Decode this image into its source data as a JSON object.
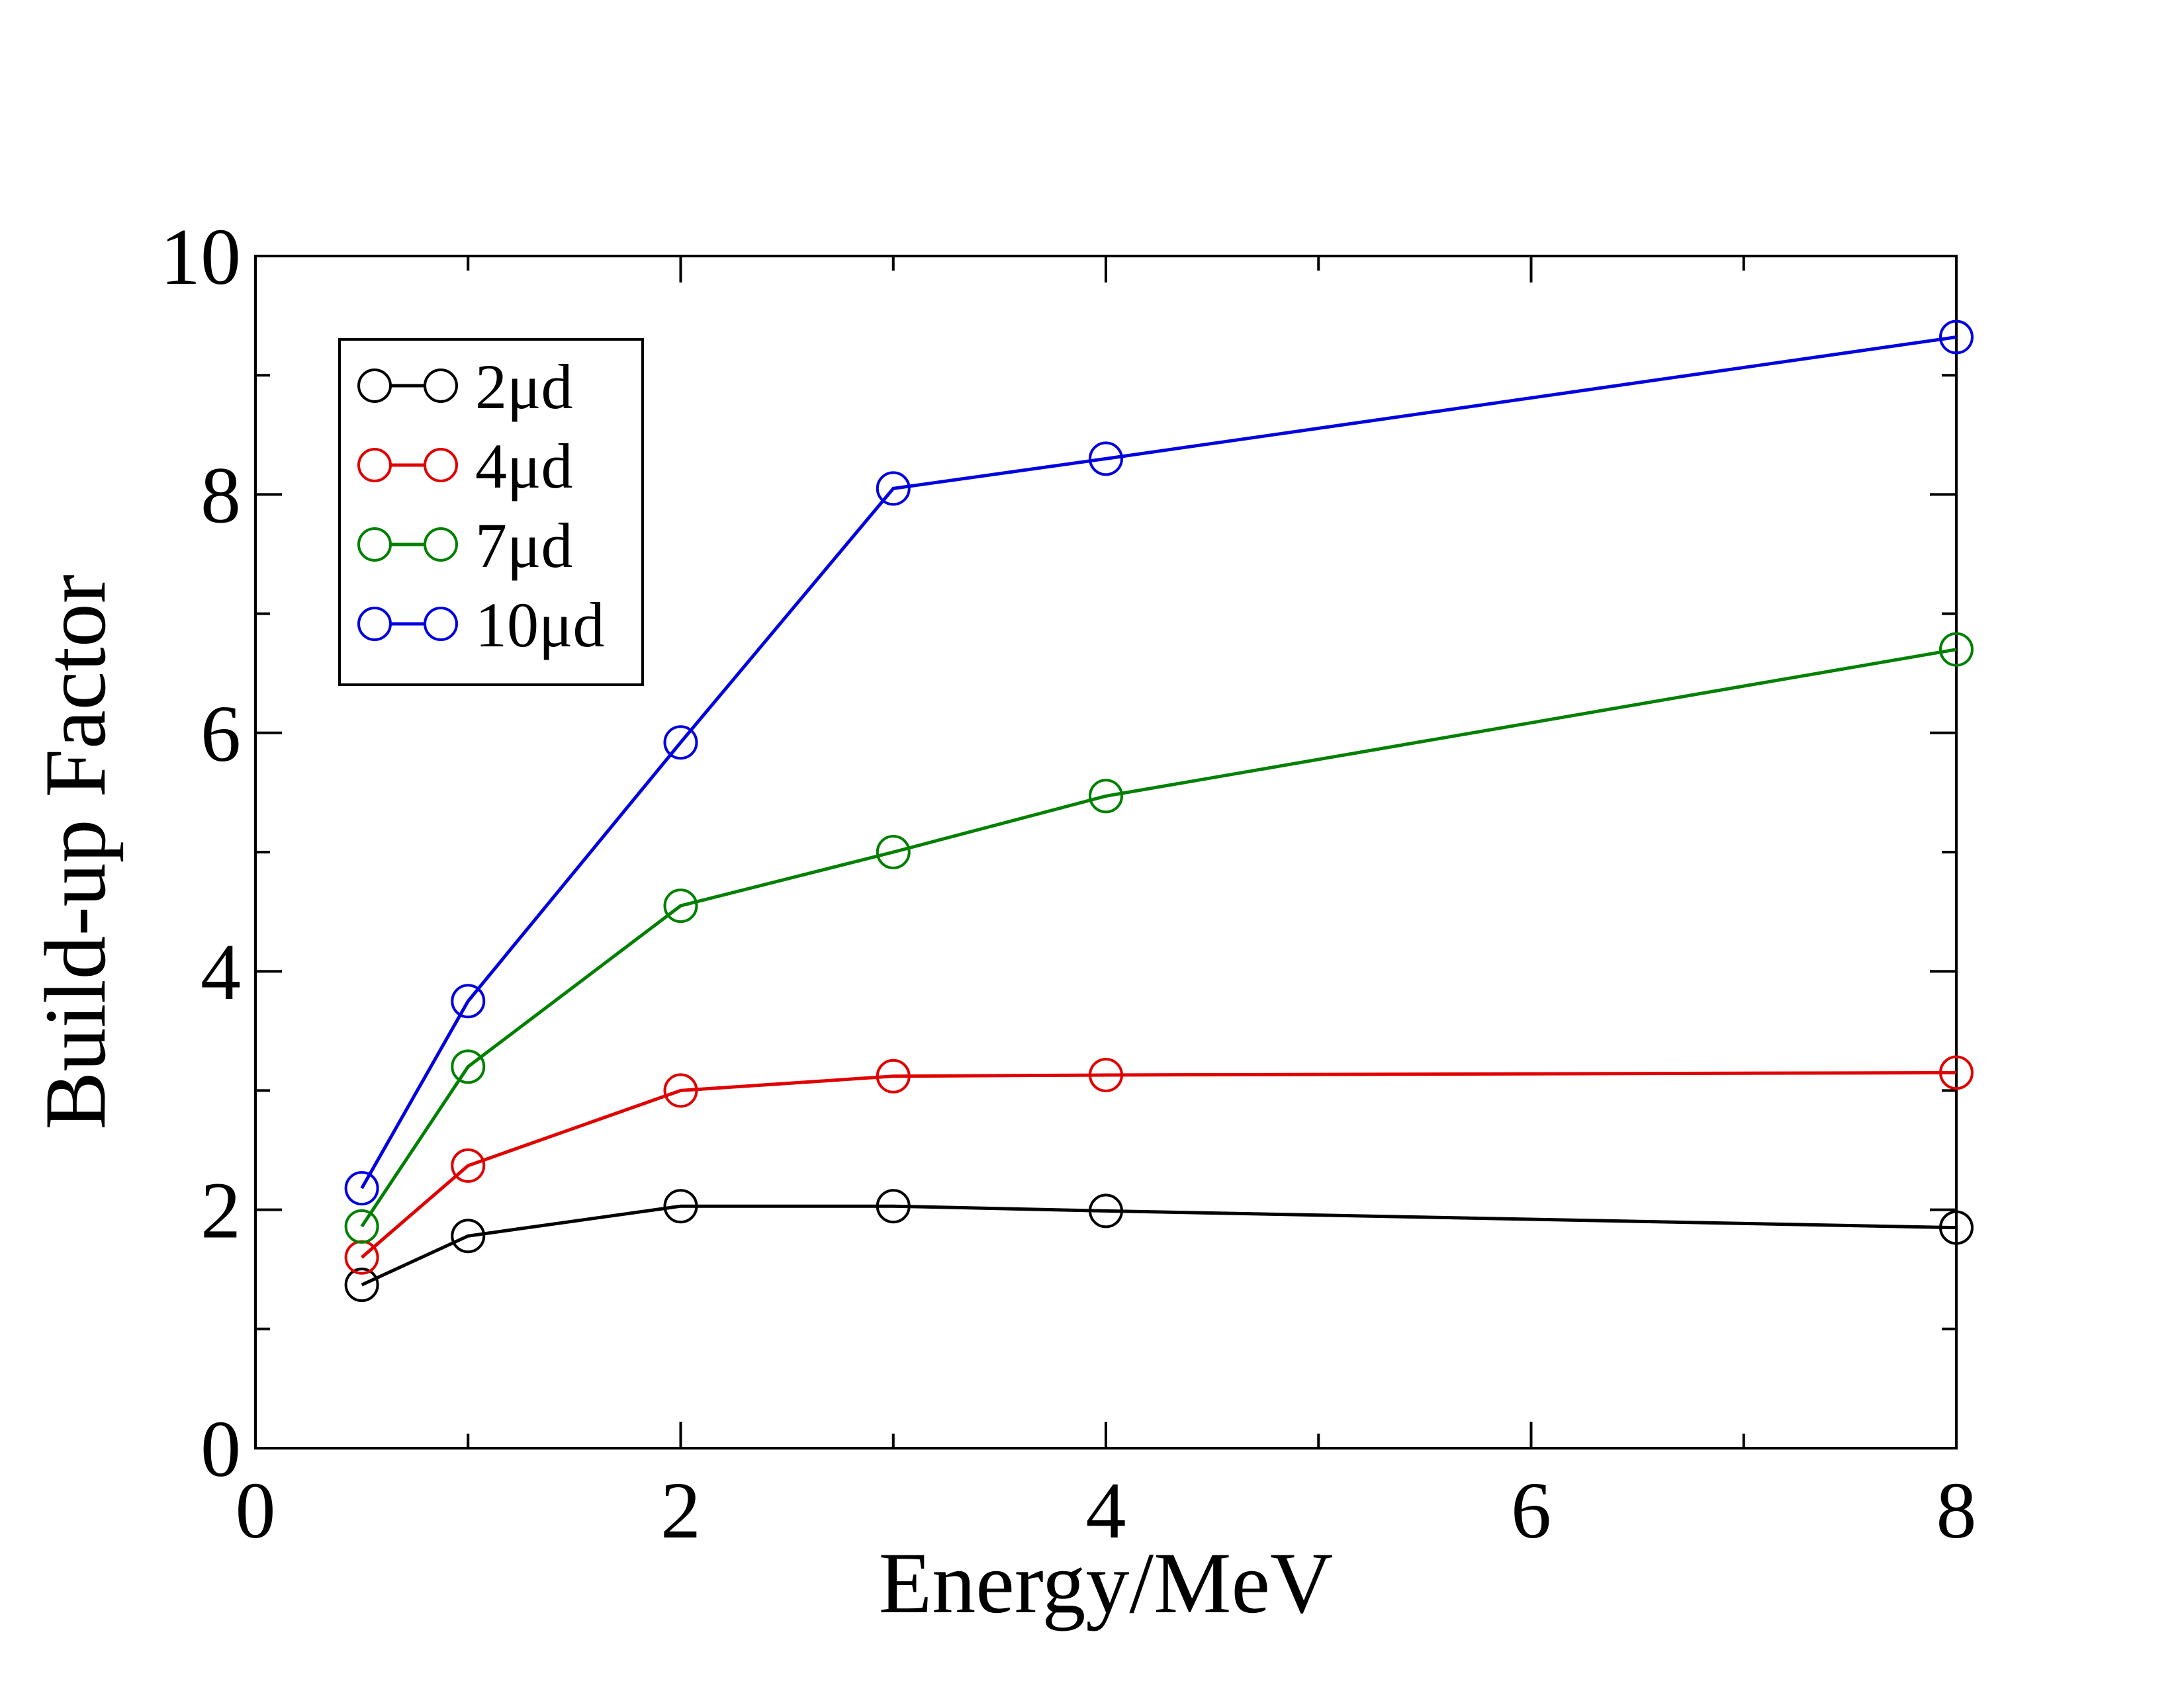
{
  "chart_data": {
    "type": "line",
    "title": "",
    "xlabel": "Energy/MeV",
    "ylabel": "Build-up Factor",
    "xlim": [
      0,
      8
    ],
    "ylim": [
      0,
      10
    ],
    "x_ticks": [
      "0",
      "2",
      "4",
      "6",
      "8"
    ],
    "y_ticks": [
      "0",
      "2",
      "4",
      "6",
      "8",
      "10"
    ],
    "x": [
      0.5,
      1,
      2,
      3,
      4,
      8
    ],
    "x_axis_note": "x positions are plotted at evenly spaced category-like spacing: 0.5,1,2,3,4 at 0.5,1,2,3,4 and 8 at 8",
    "grid": false,
    "legend_position": "top-left",
    "marker": "open-circle",
    "series": [
      {
        "name": "2μd",
        "color": "#000000",
        "values": [
          1.37,
          1.78,
          2.03,
          2.03,
          1.99,
          1.85
        ]
      },
      {
        "name": "4μd",
        "color": "#e00000",
        "values": [
          1.6,
          2.37,
          3.0,
          3.12,
          3.13,
          3.15
        ]
      },
      {
        "name": "7μd",
        "color": "#008000",
        "values": [
          1.86,
          3.2,
          4.55,
          5.0,
          5.47,
          6.7
        ]
      },
      {
        "name": "10μd",
        "color": "#0000e0",
        "values": [
          2.18,
          3.75,
          5.92,
          8.05,
          8.3,
          9.32
        ]
      }
    ]
  }
}
